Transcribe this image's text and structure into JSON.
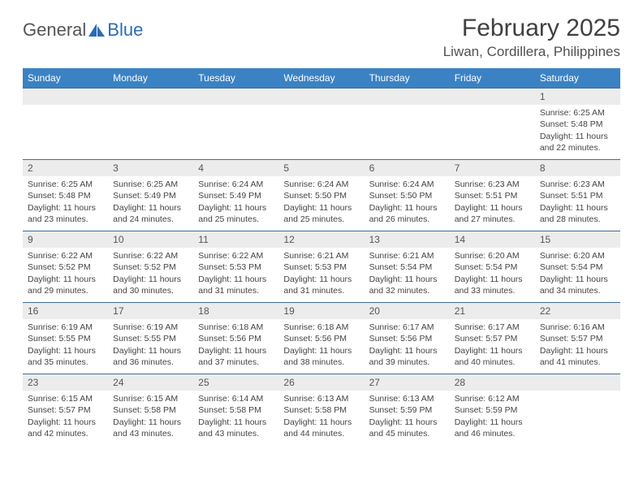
{
  "logo": {
    "text1": "General",
    "text2": "Blue"
  },
  "title": "February 2025",
  "location": "Liwan, Cordillera, Philippines",
  "weekdays": [
    "Sunday",
    "Monday",
    "Tuesday",
    "Wednesday",
    "Thursday",
    "Friday",
    "Saturday"
  ],
  "header_bg": "#3b82c4",
  "header_fg": "#ffffff",
  "daynum_bg": "#ececec",
  "cell_border": "#3b6fa0",
  "weeks": [
    [
      {
        "n": "",
        "sunrise": "",
        "sunset": "",
        "daylight": ""
      },
      {
        "n": "",
        "sunrise": "",
        "sunset": "",
        "daylight": ""
      },
      {
        "n": "",
        "sunrise": "",
        "sunset": "",
        "daylight": ""
      },
      {
        "n": "",
        "sunrise": "",
        "sunset": "",
        "daylight": ""
      },
      {
        "n": "",
        "sunrise": "",
        "sunset": "",
        "daylight": ""
      },
      {
        "n": "",
        "sunrise": "",
        "sunset": "",
        "daylight": ""
      },
      {
        "n": "1",
        "sunrise": "Sunrise: 6:25 AM",
        "sunset": "Sunset: 5:48 PM",
        "daylight": "Daylight: 11 hours and 22 minutes."
      }
    ],
    [
      {
        "n": "2",
        "sunrise": "Sunrise: 6:25 AM",
        "sunset": "Sunset: 5:48 PM",
        "daylight": "Daylight: 11 hours and 23 minutes."
      },
      {
        "n": "3",
        "sunrise": "Sunrise: 6:25 AM",
        "sunset": "Sunset: 5:49 PM",
        "daylight": "Daylight: 11 hours and 24 minutes."
      },
      {
        "n": "4",
        "sunrise": "Sunrise: 6:24 AM",
        "sunset": "Sunset: 5:49 PM",
        "daylight": "Daylight: 11 hours and 25 minutes."
      },
      {
        "n": "5",
        "sunrise": "Sunrise: 6:24 AM",
        "sunset": "Sunset: 5:50 PM",
        "daylight": "Daylight: 11 hours and 25 minutes."
      },
      {
        "n": "6",
        "sunrise": "Sunrise: 6:24 AM",
        "sunset": "Sunset: 5:50 PM",
        "daylight": "Daylight: 11 hours and 26 minutes."
      },
      {
        "n": "7",
        "sunrise": "Sunrise: 6:23 AM",
        "sunset": "Sunset: 5:51 PM",
        "daylight": "Daylight: 11 hours and 27 minutes."
      },
      {
        "n": "8",
        "sunrise": "Sunrise: 6:23 AM",
        "sunset": "Sunset: 5:51 PM",
        "daylight": "Daylight: 11 hours and 28 minutes."
      }
    ],
    [
      {
        "n": "9",
        "sunrise": "Sunrise: 6:22 AM",
        "sunset": "Sunset: 5:52 PM",
        "daylight": "Daylight: 11 hours and 29 minutes."
      },
      {
        "n": "10",
        "sunrise": "Sunrise: 6:22 AM",
        "sunset": "Sunset: 5:52 PM",
        "daylight": "Daylight: 11 hours and 30 minutes."
      },
      {
        "n": "11",
        "sunrise": "Sunrise: 6:22 AM",
        "sunset": "Sunset: 5:53 PM",
        "daylight": "Daylight: 11 hours and 31 minutes."
      },
      {
        "n": "12",
        "sunrise": "Sunrise: 6:21 AM",
        "sunset": "Sunset: 5:53 PM",
        "daylight": "Daylight: 11 hours and 31 minutes."
      },
      {
        "n": "13",
        "sunrise": "Sunrise: 6:21 AM",
        "sunset": "Sunset: 5:54 PM",
        "daylight": "Daylight: 11 hours and 32 minutes."
      },
      {
        "n": "14",
        "sunrise": "Sunrise: 6:20 AM",
        "sunset": "Sunset: 5:54 PM",
        "daylight": "Daylight: 11 hours and 33 minutes."
      },
      {
        "n": "15",
        "sunrise": "Sunrise: 6:20 AM",
        "sunset": "Sunset: 5:54 PM",
        "daylight": "Daylight: 11 hours and 34 minutes."
      }
    ],
    [
      {
        "n": "16",
        "sunrise": "Sunrise: 6:19 AM",
        "sunset": "Sunset: 5:55 PM",
        "daylight": "Daylight: 11 hours and 35 minutes."
      },
      {
        "n": "17",
        "sunrise": "Sunrise: 6:19 AM",
        "sunset": "Sunset: 5:55 PM",
        "daylight": "Daylight: 11 hours and 36 minutes."
      },
      {
        "n": "18",
        "sunrise": "Sunrise: 6:18 AM",
        "sunset": "Sunset: 5:56 PM",
        "daylight": "Daylight: 11 hours and 37 minutes."
      },
      {
        "n": "19",
        "sunrise": "Sunrise: 6:18 AM",
        "sunset": "Sunset: 5:56 PM",
        "daylight": "Daylight: 11 hours and 38 minutes."
      },
      {
        "n": "20",
        "sunrise": "Sunrise: 6:17 AM",
        "sunset": "Sunset: 5:56 PM",
        "daylight": "Daylight: 11 hours and 39 minutes."
      },
      {
        "n": "21",
        "sunrise": "Sunrise: 6:17 AM",
        "sunset": "Sunset: 5:57 PM",
        "daylight": "Daylight: 11 hours and 40 minutes."
      },
      {
        "n": "22",
        "sunrise": "Sunrise: 6:16 AM",
        "sunset": "Sunset: 5:57 PM",
        "daylight": "Daylight: 11 hours and 41 minutes."
      }
    ],
    [
      {
        "n": "23",
        "sunrise": "Sunrise: 6:15 AM",
        "sunset": "Sunset: 5:57 PM",
        "daylight": "Daylight: 11 hours and 42 minutes."
      },
      {
        "n": "24",
        "sunrise": "Sunrise: 6:15 AM",
        "sunset": "Sunset: 5:58 PM",
        "daylight": "Daylight: 11 hours and 43 minutes."
      },
      {
        "n": "25",
        "sunrise": "Sunrise: 6:14 AM",
        "sunset": "Sunset: 5:58 PM",
        "daylight": "Daylight: 11 hours and 43 minutes."
      },
      {
        "n": "26",
        "sunrise": "Sunrise: 6:13 AM",
        "sunset": "Sunset: 5:58 PM",
        "daylight": "Daylight: 11 hours and 44 minutes."
      },
      {
        "n": "27",
        "sunrise": "Sunrise: 6:13 AM",
        "sunset": "Sunset: 5:59 PM",
        "daylight": "Daylight: 11 hours and 45 minutes."
      },
      {
        "n": "28",
        "sunrise": "Sunrise: 6:12 AM",
        "sunset": "Sunset: 5:59 PM",
        "daylight": "Daylight: 11 hours and 46 minutes."
      },
      {
        "n": "",
        "sunrise": "",
        "sunset": "",
        "daylight": ""
      }
    ]
  ]
}
